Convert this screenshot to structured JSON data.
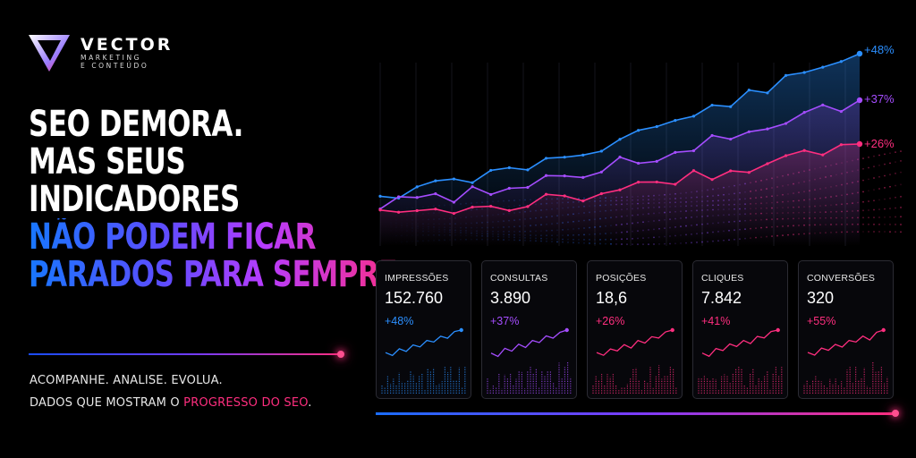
{
  "brand": {
    "name": "VECTOR",
    "subtitle_1": "MARKETING",
    "subtitle_2": "E CONTEÚDO"
  },
  "headline": {
    "line1": "SEO DEMORA.",
    "line2": "MAS SEUS",
    "line3": "INDICADORES",
    "line4": "NÃO PODEM FICAR",
    "line5": "PARADOS PARA SEMPRE."
  },
  "tagline": {
    "line1": "ACOMPANHE. ANALISE. EVOLUA.",
    "line2_prefix": "DADOS QUE MOSTRAM O ",
    "line2_highlight": "PROGRESSO DO SEO",
    "line2_suffix": "."
  },
  "main_chart": {
    "series": [
      {
        "label": "+48%",
        "color": "#2b8fff"
      },
      {
        "label": "+37%",
        "color": "#a54dff"
      },
      {
        "label": "+26%",
        "color": "#ff2e7f"
      }
    ]
  },
  "metrics": [
    {
      "name": "IMPRESSÕES",
      "value": "152.760",
      "change": "+48%",
      "color": "#2b8fff"
    },
    {
      "name": "CONSULTAS",
      "value": "3.890",
      "change": "+37%",
      "color": "#a54dff"
    },
    {
      "name": "POSIÇÕES",
      "value": "18,6",
      "change": "+26%",
      "color": "#ff2e7f"
    },
    {
      "name": "CLIQUES",
      "value": "7.842",
      "change": "+41%",
      "color": "#ff2e7f"
    },
    {
      "name": "CONVERSÕES",
      "value": "320",
      "change": "+55%",
      "color": "#ff2e7f"
    }
  ],
  "colors": {
    "blue": "#2b8fff",
    "purple": "#a54dff",
    "pink": "#ff2e7f",
    "background": "#000000"
  }
}
